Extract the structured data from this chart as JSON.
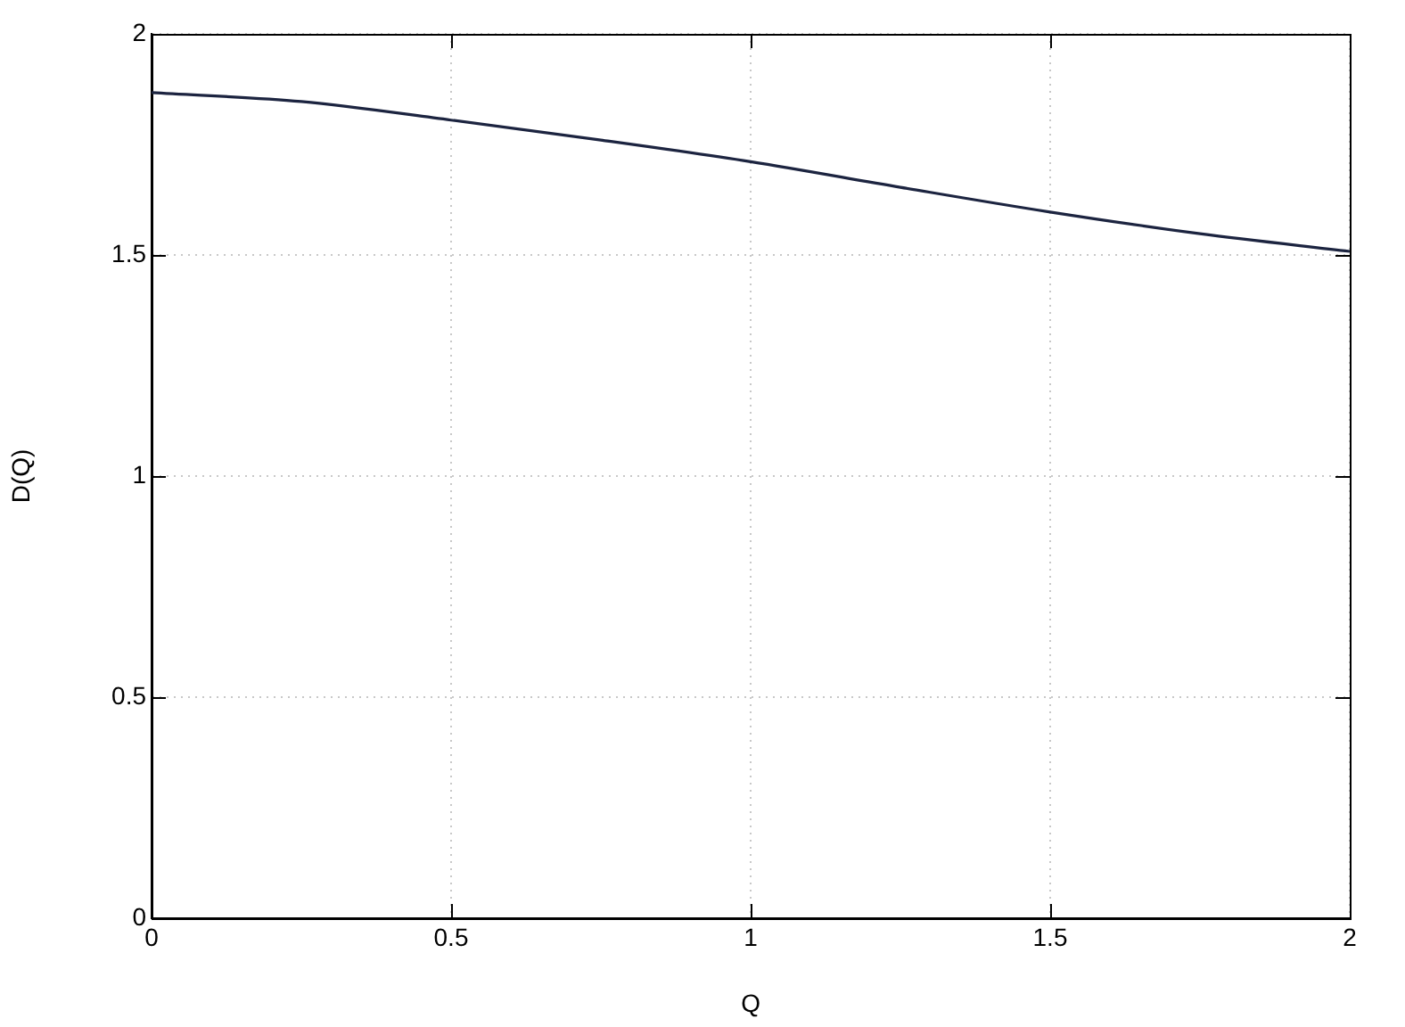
{
  "chart_data": {
    "type": "line",
    "xlabel": "Q",
    "ylabel": "D(Q)",
    "x": [
      0,
      0.25,
      0.5,
      0.75,
      1,
      1.25,
      1.5,
      1.75,
      2
    ],
    "series": [
      {
        "color": "#1c2440",
        "values": [
          1.867,
          1.847,
          1.805,
          1.76,
          1.711,
          1.653,
          1.597,
          1.548,
          1.508
        ]
      }
    ],
    "xlim": [
      0,
      2
    ],
    "xticks": [
      0,
      0.5,
      1,
      1.5,
      2
    ],
    "ylim": [
      0,
      2
    ],
    "yticks": [
      0,
      0.5,
      1,
      1.5,
      2
    ],
    "grid": true,
    "legend": false,
    "marker": "none",
    "line_style": "solid"
  }
}
